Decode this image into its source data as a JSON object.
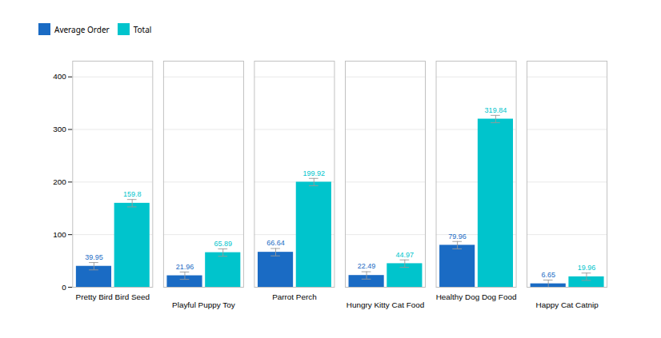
{
  "chart_data": {
    "type": "bar",
    "categories": [
      "Pretty Bird Bird Seed",
      "Playful Puppy Toy",
      "Parrot Perch",
      "Hungry Kitty Cat Food",
      "Healthy Dog Dog Food",
      "Happy Cat Catnip"
    ],
    "series": [
      {
        "name": "Average Order",
        "color": "#1A6BC4",
        "values": [
          39.95,
          21.96,
          66.64,
          22.49,
          79.96,
          6.65
        ],
        "errors": [
          7,
          7,
          7,
          7,
          7,
          7
        ]
      },
      {
        "name": "Total",
        "color": "#00C4CC",
        "values": [
          159.8,
          65.89,
          199.92,
          44.97,
          319.84,
          19.96
        ],
        "errors": [
          7,
          7,
          7,
          7,
          7,
          7
        ]
      }
    ],
    "ylim": [
      0,
      430
    ],
    "yticks": [
      0,
      100,
      200,
      300,
      400
    ],
    "grid": true,
    "legend": "upper left",
    "data_labels": true
  }
}
